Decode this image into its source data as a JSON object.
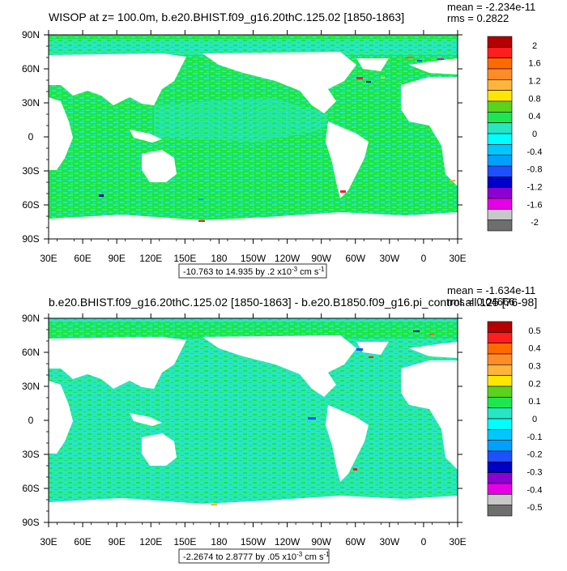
{
  "chart_data": [
    {
      "type": "heatmap",
      "title": "WISOP at z= 100.0m, b.e20.BHIST.f09_g16.20thC.125.02 [1850-1863]",
      "stats": [
        "mean = -2.234e-11",
        "rms = 0.2822"
      ],
      "lon_ticks": [
        "30E",
        "60E",
        "90E",
        "120E",
        "150E",
        "180",
        "150W",
        "120W",
        "90W",
        "60W",
        "30W",
        "0",
        "30E"
      ],
      "lat_ticks": [
        "90N",
        "60N",
        "30N",
        "0",
        "30S",
        "60S",
        "90S"
      ],
      "colorbar_levels": [
        "2",
        "1.6",
        "1.2",
        "0.8",
        "0.4",
        "0",
        "-0.4",
        "-0.8",
        "-1.2",
        "-1.6",
        "-2"
      ],
      "range_caption": "-10.763 to 14.935 by .2 x10",
      "range_exp": "-3",
      "range_unit": " cm s",
      "range_unit_exp": "-1"
    },
    {
      "type": "heatmap",
      "title": "b.e20.BHIST.f09_g16.20thC.125.02 [1850-1863] - b.e20.B1850.f09_g16.pi_control.all.125 [76-98]",
      "stats": [
        "mean = -1.634e-11",
        "rms = 0.04666"
      ],
      "lon_ticks": [
        "30E",
        "60E",
        "90E",
        "120E",
        "150E",
        "180",
        "150W",
        "120W",
        "90W",
        "60W",
        "30W",
        "0",
        "30E"
      ],
      "lat_ticks": [
        "90N",
        "60N",
        "30N",
        "0",
        "30S",
        "60S",
        "90S"
      ],
      "colorbar_levels": [
        "0.5",
        "0.4",
        "0.3",
        "0.2",
        "0.1",
        "0",
        "-0.1",
        "-0.2",
        "-0.3",
        "-0.4",
        "-0.5"
      ],
      "range_caption": "-2.2674 to 2.8777 by .05 x10",
      "range_exp": "-3",
      "range_unit": " cm s",
      "range_unit_exp": "-1"
    }
  ],
  "colors": {
    "ocean_bright": "#1ee63c",
    "ocean_cyan": "#28e6c3",
    "land": "#ffffff",
    "colorbar": [
      "#b40000",
      "#ff1e1e",
      "#ff6a00",
      "#ff8c28",
      "#ffb43c",
      "#ffe600",
      "#5ad21e",
      "#1ee650",
      "#28e6c3",
      "#00ffff",
      "#00c8ff",
      "#00a0ff",
      "#1e50ff",
      "#0000c8",
      "#8c00d2",
      "#e600e6",
      "#c8c8c8",
      "#6e6e6e"
    ]
  }
}
